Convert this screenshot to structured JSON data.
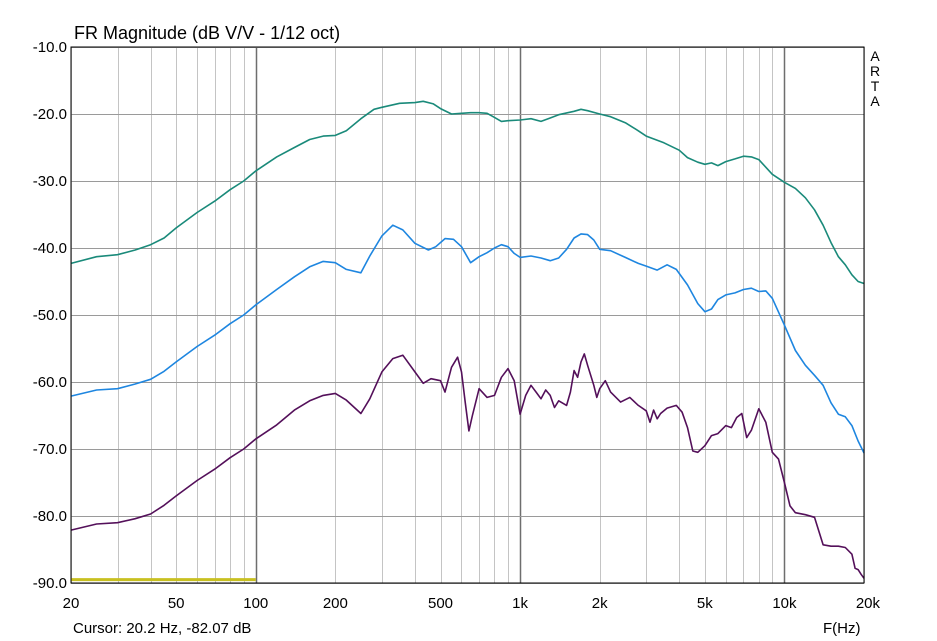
{
  "chart_data": {
    "type": "line",
    "title": "FR Magnitude (dB V/V - 1/12 oct)",
    "watermark": "ARTA",
    "xlabel": "F(Hz)",
    "ylabel": "",
    "x_scale": "log",
    "xlim": [
      20,
      20000
    ],
    "ylim": [
      -90,
      -10
    ],
    "grid": true,
    "legend": "none",
    "x_ticks": [
      {
        "value": 20,
        "label": "20"
      },
      {
        "value": 50,
        "label": "50"
      },
      {
        "value": 100,
        "label": "100"
      },
      {
        "value": 200,
        "label": "200"
      },
      {
        "value": 500,
        "label": "500"
      },
      {
        "value": 1000,
        "label": "1k"
      },
      {
        "value": 2000,
        "label": "2k"
      },
      {
        "value": 5000,
        "label": "5k"
      },
      {
        "value": 10000,
        "label": "10k"
      },
      {
        "value": 20000,
        "label": "20k"
      }
    ],
    "y_ticks": [
      {
        "value": -10,
        "label": "-10.0"
      },
      {
        "value": -20,
        "label": "-20.0"
      },
      {
        "value": -30,
        "label": "-30.0"
      },
      {
        "value": -40,
        "label": "-40.0"
      },
      {
        "value": -50,
        "label": "-50.0"
      },
      {
        "value": -60,
        "label": "-60.0"
      },
      {
        "value": -70,
        "label": "-70.0"
      },
      {
        "value": -80,
        "label": "-80.0"
      },
      {
        "value": -90,
        "label": "-90.0"
      }
    ],
    "series": [
      {
        "color": "#1a8a7a",
        "points": [
          [
            20,
            -42.3
          ],
          [
            25,
            -41.3
          ],
          [
            30,
            -41
          ],
          [
            35,
            -40.3
          ],
          [
            40,
            -39.5
          ],
          [
            45,
            -38.5
          ],
          [
            50,
            -37
          ],
          [
            60,
            -34.7
          ],
          [
            70,
            -33
          ],
          [
            80,
            -31.3
          ],
          [
            90,
            -30
          ],
          [
            100,
            -28.5
          ],
          [
            120,
            -26.4
          ],
          [
            140,
            -25
          ],
          [
            160,
            -23.8
          ],
          [
            180,
            -23.3
          ],
          [
            200,
            -23.2
          ],
          [
            220,
            -22.5
          ],
          [
            250,
            -20.7
          ],
          [
            280,
            -19.3
          ],
          [
            300,
            -19
          ],
          [
            350,
            -18.4
          ],
          [
            400,
            -18.3
          ],
          [
            430,
            -18.1
          ],
          [
            470,
            -18.5
          ],
          [
            500,
            -19.2
          ],
          [
            550,
            -20
          ],
          [
            600,
            -19.9
          ],
          [
            650,
            -19.8
          ],
          [
            700,
            -19.8
          ],
          [
            750,
            -19.9
          ],
          [
            800,
            -20.5
          ],
          [
            850,
            -21.1
          ],
          [
            900,
            -21
          ],
          [
            1000,
            -20.9
          ],
          [
            1100,
            -20.7
          ],
          [
            1200,
            -21.1
          ],
          [
            1300,
            -20.6
          ],
          [
            1400,
            -20.1
          ],
          [
            1600,
            -19.6
          ],
          [
            1700,
            -19.3
          ],
          [
            1800,
            -19.5
          ],
          [
            2000,
            -20
          ],
          [
            2200,
            -20.4
          ],
          [
            2500,
            -21.3
          ],
          [
            2800,
            -22.5
          ],
          [
            3000,
            -23.3
          ],
          [
            3500,
            -24.3
          ],
          [
            4000,
            -25.4
          ],
          [
            4300,
            -26.5
          ],
          [
            4700,
            -27.2
          ],
          [
            5000,
            -27.5
          ],
          [
            5300,
            -27.3
          ],
          [
            5600,
            -27.7
          ],
          [
            6000,
            -27.1
          ],
          [
            6500,
            -26.7
          ],
          [
            7000,
            -26.3
          ],
          [
            7500,
            -26.4
          ],
          [
            8000,
            -26.8
          ],
          [
            9000,
            -29
          ],
          [
            10000,
            -30.2
          ],
          [
            11000,
            -31.1
          ],
          [
            12000,
            -32.5
          ],
          [
            13000,
            -34.3
          ],
          [
            14000,
            -36.6
          ],
          [
            15000,
            -39.2
          ],
          [
            16000,
            -41.3
          ],
          [
            17000,
            -42.5
          ],
          [
            18000,
            -44
          ],
          [
            19000,
            -45
          ],
          [
            20000,
            -45.3
          ]
        ]
      },
      {
        "color": "#1e86e0",
        "points": [
          [
            20,
            -62.1
          ],
          [
            25,
            -61.2
          ],
          [
            30,
            -61
          ],
          [
            35,
            -60.3
          ],
          [
            40,
            -59.6
          ],
          [
            45,
            -58.4
          ],
          [
            50,
            -57
          ],
          [
            60,
            -54.7
          ],
          [
            70,
            -53
          ],
          [
            80,
            -51.3
          ],
          [
            90,
            -50
          ],
          [
            100,
            -48.5
          ],
          [
            120,
            -46.2
          ],
          [
            140,
            -44.3
          ],
          [
            160,
            -42.8
          ],
          [
            180,
            -42
          ],
          [
            200,
            -42.2
          ],
          [
            220,
            -43.2
          ],
          [
            250,
            -43.7
          ],
          [
            270,
            -41.2
          ],
          [
            300,
            -38.2
          ],
          [
            330,
            -36.6
          ],
          [
            360,
            -37.3
          ],
          [
            400,
            -39.3
          ],
          [
            450,
            -40.3
          ],
          [
            480,
            -39.8
          ],
          [
            520,
            -38.6
          ],
          [
            560,
            -38.7
          ],
          [
            600,
            -39.8
          ],
          [
            650,
            -42.2
          ],
          [
            700,
            -41.3
          ],
          [
            750,
            -40.7
          ],
          [
            800,
            -40
          ],
          [
            850,
            -39.5
          ],
          [
            900,
            -39.8
          ],
          [
            950,
            -40.8
          ],
          [
            1000,
            -41.4
          ],
          [
            1100,
            -41.2
          ],
          [
            1200,
            -41.5
          ],
          [
            1300,
            -41.9
          ],
          [
            1400,
            -41.5
          ],
          [
            1500,
            -40.2
          ],
          [
            1600,
            -38.5
          ],
          [
            1700,
            -37.9
          ],
          [
            1800,
            -38
          ],
          [
            1900,
            -38.8
          ],
          [
            2000,
            -40.2
          ],
          [
            2200,
            -40.4
          ],
          [
            2500,
            -41.4
          ],
          [
            2800,
            -42.3
          ],
          [
            3000,
            -42.7
          ],
          [
            3300,
            -43.3
          ],
          [
            3600,
            -42.5
          ],
          [
            3900,
            -43.2
          ],
          [
            4300,
            -45.5
          ],
          [
            4700,
            -48.3
          ],
          [
            5000,
            -49.5
          ],
          [
            5300,
            -49.1
          ],
          [
            5600,
            -47.7
          ],
          [
            6000,
            -47
          ],
          [
            6500,
            -46.7
          ],
          [
            7000,
            -46.2
          ],
          [
            7500,
            -46
          ],
          [
            8000,
            -46.5
          ],
          [
            8500,
            -46.4
          ],
          [
            9000,
            -47.5
          ],
          [
            10000,
            -51.5
          ],
          [
            11000,
            -55.3
          ],
          [
            12000,
            -57.5
          ],
          [
            13000,
            -59
          ],
          [
            14000,
            -60.5
          ],
          [
            15000,
            -63.1
          ],
          [
            16000,
            -64.8
          ],
          [
            17000,
            -65.2
          ],
          [
            18000,
            -66.5
          ],
          [
            19000,
            -68.8
          ],
          [
            20000,
            -70.6
          ]
        ]
      },
      {
        "color": "#54105a",
        "points": [
          [
            20,
            -82.1
          ],
          [
            25,
            -81.2
          ],
          [
            30,
            -81
          ],
          [
            35,
            -80.4
          ],
          [
            40,
            -79.7
          ],
          [
            45,
            -78.4
          ],
          [
            50,
            -77
          ],
          [
            60,
            -74.7
          ],
          [
            70,
            -73
          ],
          [
            80,
            -71.3
          ],
          [
            90,
            -70
          ],
          [
            100,
            -68.5
          ],
          [
            120,
            -66.4
          ],
          [
            140,
            -64.2
          ],
          [
            160,
            -62.8
          ],
          [
            180,
            -62
          ],
          [
            200,
            -61.7
          ],
          [
            220,
            -62.7
          ],
          [
            250,
            -64.7
          ],
          [
            270,
            -62.5
          ],
          [
            300,
            -58.5
          ],
          [
            330,
            -56.5
          ],
          [
            360,
            -56
          ],
          [
            400,
            -58.5
          ],
          [
            430,
            -60.2
          ],
          [
            460,
            -59.5
          ],
          [
            500,
            -59.8
          ],
          [
            520,
            -61.5
          ],
          [
            550,
            -57.8
          ],
          [
            580,
            -56.3
          ],
          [
            600,
            -58.5
          ],
          [
            620,
            -63
          ],
          [
            640,
            -67.3
          ],
          [
            660,
            -65
          ],
          [
            700,
            -61
          ],
          [
            750,
            -62.3
          ],
          [
            800,
            -62
          ],
          [
            850,
            -59.3
          ],
          [
            900,
            -58
          ],
          [
            950,
            -59.8
          ],
          [
            1000,
            -64.8
          ],
          [
            1050,
            -62
          ],
          [
            1100,
            -60.5
          ],
          [
            1150,
            -61.5
          ],
          [
            1200,
            -62.5
          ],
          [
            1250,
            -61.2
          ],
          [
            1300,
            -62
          ],
          [
            1350,
            -63.8
          ],
          [
            1400,
            -62.8
          ],
          [
            1500,
            -63.5
          ],
          [
            1550,
            -61.5
          ],
          [
            1600,
            -58.3
          ],
          [
            1650,
            -59.3
          ],
          [
            1700,
            -57
          ],
          [
            1750,
            -55.8
          ],
          [
            1800,
            -57.5
          ],
          [
            1900,
            -60.5
          ],
          [
            1950,
            -62.3
          ],
          [
            2000,
            -61
          ],
          [
            2100,
            -59.8
          ],
          [
            2200,
            -61.5
          ],
          [
            2400,
            -63
          ],
          [
            2600,
            -62.3
          ],
          [
            2800,
            -63.5
          ],
          [
            3000,
            -64.3
          ],
          [
            3100,
            -66
          ],
          [
            3200,
            -64.2
          ],
          [
            3300,
            -65.5
          ],
          [
            3400,
            -64.7
          ],
          [
            3600,
            -63.9
          ],
          [
            3900,
            -63.5
          ],
          [
            4100,
            -64.5
          ],
          [
            4300,
            -66.8
          ],
          [
            4500,
            -70.3
          ],
          [
            4700,
            -70.5
          ],
          [
            5000,
            -69.5
          ],
          [
            5300,
            -68
          ],
          [
            5600,
            -67.7
          ],
          [
            6000,
            -66.5
          ],
          [
            6300,
            -66.8
          ],
          [
            6600,
            -65.3
          ],
          [
            6900,
            -64.7
          ],
          [
            7200,
            -68.3
          ],
          [
            7500,
            -67.2
          ],
          [
            8000,
            -64
          ],
          [
            8500,
            -66
          ],
          [
            9000,
            -70.5
          ],
          [
            9500,
            -71.5
          ],
          [
            10000,
            -75
          ],
          [
            10500,
            -78.5
          ],
          [
            11000,
            -79.5
          ],
          [
            12000,
            -79.8
          ],
          [
            13000,
            -80.2
          ],
          [
            14000,
            -84.3
          ],
          [
            15000,
            -84.5
          ],
          [
            16000,
            -84.5
          ],
          [
            17000,
            -84.7
          ],
          [
            18000,
            -85.7
          ],
          [
            18500,
            -87.8
          ],
          [
            19000,
            -88
          ],
          [
            19500,
            -88.7
          ],
          [
            20000,
            -89.3
          ]
        ]
      },
      {
        "color": "#c8c020",
        "points": [
          [
            20,
            -89.5
          ],
          [
            100,
            -89.5
          ]
        ]
      }
    ]
  },
  "status": {
    "cursor": "Cursor: 20.2 Hz, -82.07 dB"
  }
}
